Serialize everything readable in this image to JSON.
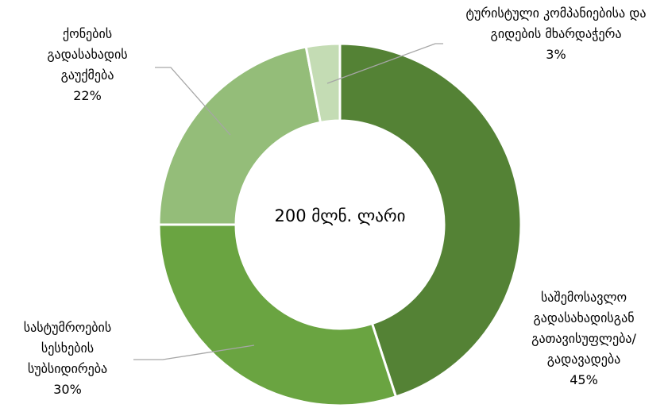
{
  "chart_data": {
    "type": "donut",
    "center_label": "200 მლნ. ლარი",
    "categories": [
      "საშემოსავლო გადასახადისგან გათავისუფლება/გადავადება",
      "სასტუმროების სესხების სუბსიდირება",
      "ქონების გადასახადის გაუქმება",
      "ტურისტული კომპანიებისა და გიდების მხარდაჭერა"
    ],
    "values": [
      45,
      30,
      22,
      3
    ],
    "value_labels": [
      "45%",
      "30%",
      "22%",
      "3%"
    ],
    "colors": [
      "#548235",
      "#6aa441",
      "#94bd79",
      "#c4dcb4"
    ]
  }
}
